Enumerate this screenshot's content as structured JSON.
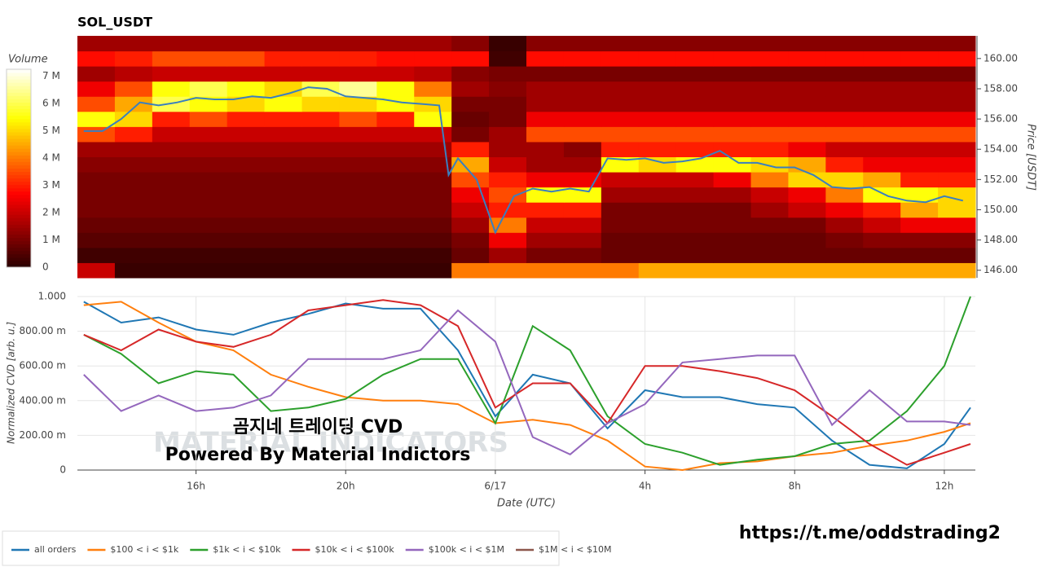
{
  "chart_data": [
    {
      "type": "heatmap",
      "title": "SOL_USDT",
      "x": [
        13.33,
        14.33,
        15.33,
        16.33,
        17.33,
        18.33,
        19.33,
        20.33,
        21.33,
        22.33,
        23.33,
        24.33,
        25.33,
        26.33,
        27.33,
        28.33,
        29.33,
        30.33,
        31.33,
        32.33,
        33.33,
        34.33,
        35.33,
        36.33
      ],
      "y": [
        146,
        147,
        148,
        149,
        150,
        151,
        152,
        153,
        154,
        155,
        156,
        157,
        158,
        159,
        160,
        161
      ],
      "z": [
        [
          2000000.0,
          200000.0,
          200000.0,
          200000.0,
          200000.0,
          200000.0,
          200000.0,
          200000.0,
          200000.0,
          200000.0,
          4000000.0,
          4000000.0,
          4000000.0,
          4000000.0,
          4000000.0,
          4500000.0,
          4500000.0,
          4500000.0,
          4500000.0,
          4500000.0,
          4500000.0,
          4500000.0,
          4500000.0,
          4500000.0
        ],
        [
          300000.0,
          300000.0,
          300000.0,
          300000.0,
          300000.0,
          300000.0,
          300000.0,
          300000.0,
          300000.0,
          300000.0,
          800000.0,
          1500000.0,
          1000000.0,
          1000000.0,
          800000.0,
          800000.0,
          800000.0,
          800000.0,
          800000.0,
          800000.0,
          800000.0,
          800000.0,
          800000.0,
          800000.0
        ],
        [
          600000.0,
          600000.0,
          600000.0,
          600000.0,
          600000.0,
          600000.0,
          600000.0,
          600000.0,
          600000.0,
          600000.0,
          1000000.0,
          2500000.0,
          1500000.0,
          1500000.0,
          800000.0,
          800000.0,
          800000.0,
          800000.0,
          800000.0,
          800000.0,
          1000000.0,
          1200000.0,
          1200000.0,
          1200000.0
        ],
        [
          800000.0,
          800000.0,
          800000.0,
          800000.0,
          800000.0,
          800000.0,
          800000.0,
          800000.0,
          800000.0,
          800000.0,
          1500000.0,
          4000000.0,
          2000000.0,
          2000000.0,
          1000000.0,
          1000000.0,
          1000000.0,
          1000000.0,
          1000000.0,
          1000000.0,
          1500000.0,
          2000000.0,
          2500000.0,
          2500000.0
        ],
        [
          1000000.0,
          1000000.0,
          1000000.0,
          1000000.0,
          1000000.0,
          1000000.0,
          1000000.0,
          1000000.0,
          1000000.0,
          1000000.0,
          2000000.0,
          3000000.0,
          3000000.0,
          3000000.0,
          1000000.0,
          1000000.0,
          1000000.0,
          1000000.0,
          1500000.0,
          2000000.0,
          2500000.0,
          3000000.0,
          4500000.0,
          5000000.0
        ],
        [
          1000000.0,
          1000000.0,
          1000000.0,
          1000000.0,
          1000000.0,
          1000000.0,
          1000000.0,
          1000000.0,
          1000000.0,
          1000000.0,
          2500000.0,
          3500000.0,
          5500000.0,
          5500000.0,
          1500000.0,
          1500000.0,
          1500000.0,
          1500000.0,
          2000000.0,
          2500000.0,
          4000000.0,
          5500000.0,
          5500000.0,
          5000000.0
        ],
        [
          1000000.0,
          1000000.0,
          1000000.0,
          1000000.0,
          1000000.0,
          1000000.0,
          1000000.0,
          1000000.0,
          1000000.0,
          1000000.0,
          3500000.0,
          3000000.0,
          2500000.0,
          2500000.0,
          2000000.0,
          2000000.0,
          2000000.0,
          2500000.0,
          4000000.0,
          5000000.0,
          5000000.0,
          4500000.0,
          3000000.0,
          3000000.0
        ],
        [
          1200000.0,
          1200000.0,
          1200000.0,
          1200000.0,
          1200000.0,
          1200000.0,
          1200000.0,
          1200000.0,
          1200000.0,
          1200000.0,
          4500000.0,
          2000000.0,
          1500000.0,
          1500000.0,
          5500000.0,
          5000000.0,
          5500000.0,
          5500000.0,
          5000000.0,
          4500000.0,
          3000000.0,
          2500000.0,
          2500000.0,
          2500000.0
        ],
        [
          1500000.0,
          1500000.0,
          1500000.0,
          1500000.0,
          1500000.0,
          1500000.0,
          1500000.0,
          1500000.0,
          1500000.0,
          1500000.0,
          3000000.0,
          1500000.0,
          1500000.0,
          1200000.0,
          3000000.0,
          3000000.0,
          3000000.0,
          3000000.0,
          3000000.0,
          2500000.0,
          2000000.0,
          2000000.0,
          2000000.0,
          2000000.0
        ],
        [
          3500000.0,
          3000000.0,
          2000000.0,
          2000000.0,
          2000000.0,
          2000000.0,
          2000000.0,
          2000000.0,
          2000000.0,
          2000000.0,
          1000000.0,
          1500000.0,
          3500000.0,
          3500000.0,
          3500000.0,
          3500000.0,
          3500000.0,
          3500000.0,
          3500000.0,
          3500000.0,
          3500000.0,
          3500000.0,
          3500000.0,
          3500000.0
        ],
        [
          5500000.0,
          5000000.0,
          3000000.0,
          3500000.0,
          3000000.0,
          3000000.0,
          3000000.0,
          3500000.0,
          3000000.0,
          5500000.0,
          800000.0,
          1000000.0,
          2500000.0,
          2500000.0,
          2500000.0,
          2500000.0,
          2500000.0,
          2500000.0,
          2500000.0,
          2500000.0,
          2500000.0,
          2500000.0,
          2500000.0,
          2500000.0
        ],
        [
          3500000.0,
          4500000.0,
          6000000.0,
          5500000.0,
          5000000.0,
          5500000.0,
          5000000.0,
          5000000.0,
          5500000.0,
          5000000.0,
          1000000.0,
          1000000.0,
          1500000.0,
          1500000.0,
          1500000.0,
          1500000.0,
          1500000.0,
          1500000.0,
          1500000.0,
          1500000.0,
          1500000.0,
          1500000.0,
          1500000.0,
          1500000.0
        ],
        [
          2500000.0,
          3500000.0,
          5500000.0,
          6000000.0,
          5500000.0,
          5000000.0,
          6000000.0,
          6500000.0,
          5500000.0,
          4000000.0,
          1500000.0,
          1200000.0,
          1500000.0,
          1500000.0,
          1500000.0,
          1500000.0,
          1500000.0,
          1500000.0,
          1500000.0,
          1500000.0,
          1500000.0,
          1500000.0,
          1500000.0,
          1500000.0
        ],
        [
          1500000.0,
          1800000.0,
          2000000.0,
          2000000.0,
          2000000.0,
          2000000.0,
          2000000.0,
          2000000.0,
          2000000.0,
          1800000.0,
          1200000.0,
          1000000.0,
          1000000.0,
          1000000.0,
          1000000.0,
          1000000.0,
          1000000.0,
          1000000.0,
          1000000.0,
          1000000.0,
          1000000.0,
          1000000.0,
          1000000.0,
          1000000.0
        ],
        [
          2800000.0,
          3000000.0,
          3500000.0,
          3500000.0,
          3500000.0,
          3000000.0,
          3000000.0,
          3000000.0,
          2800000.0,
          2800000.0,
          2800000.0,
          300000.0,
          2800000.0,
          2800000.0,
          2800000.0,
          2800000.0,
          2800000.0,
          2800000.0,
          2800000.0,
          2800000.0,
          2800000.0,
          2800000.0,
          2800000.0,
          2800000.0
        ],
        [
          1500000.0,
          1500000.0,
          1500000.0,
          1500000.0,
          1500000.0,
          1500000.0,
          1500000.0,
          1500000.0,
          1500000.0,
          1500000.0,
          1200000.0,
          200000.0,
          1200000.0,
          1200000.0,
          1200000.0,
          1200000.0,
          1200000.0,
          1200000.0,
          1200000.0,
          1200000.0,
          1200000.0,
          1200000.0,
          1200000.0,
          1200000.0
        ]
      ],
      "zlim": [
        0,
        7250000
      ],
      "colorbar_label": "Volume",
      "zticks": [
        0,
        {
          "value": 1000000,
          "label": "1 M"
        },
        {
          "value": 2000000,
          "label": "2 M"
        },
        {
          "value": 3000000,
          "label": "3 M"
        },
        {
          "value": 4000000,
          "label": "4 M"
        },
        {
          "value": 5000000,
          "label": "5 M"
        },
        {
          "value": 6000000,
          "label": "6 M"
        },
        {
          "value": 7000000,
          "label": "7 M"
        }
      ],
      "colormap": "hot",
      "xlim": [
        12.83,
        36.83
      ],
      "ylim": [
        145.5,
        161.5
      ],
      "yticks": [
        {
          "value": 146,
          "label": "146.00"
        },
        {
          "value": 148,
          "label": "148.00"
        },
        {
          "value": 150,
          "label": "150.00"
        },
        {
          "value": 152,
          "label": "152.00"
        },
        {
          "value": 154,
          "label": "154.00"
        },
        {
          "value": 156,
          "label": "156.00"
        },
        {
          "value": 158,
          "label": "158.00"
        },
        {
          "value": 160,
          "label": "160.00"
        }
      ],
      "ylabel": "Price [USDT]",
      "line": {
        "color": "#3a7fbf",
        "x": [
          13,
          13.5,
          14,
          14.5,
          15,
          15.5,
          16,
          16.5,
          17,
          17.5,
          18,
          18.5,
          19,
          19.5,
          20,
          20.5,
          21,
          21.5,
          22,
          22.5,
          22.75,
          23,
          23.5,
          24,
          24.5,
          25,
          25.5,
          26,
          26.5,
          27,
          27.5,
          28,
          28.5,
          29,
          29.5,
          30,
          30.5,
          31,
          31.5,
          32,
          32.5,
          33,
          33.5,
          34,
          34.5,
          35,
          35.5,
          36,
          36.5
        ],
        "values": [
          155.2,
          155.2,
          156,
          157.1,
          156.9,
          157.1,
          157.4,
          157.3,
          157.3,
          157.5,
          157.4,
          157.7,
          158.1,
          158,
          157.5,
          157.4,
          157.3,
          157.1,
          157,
          156.9,
          152.3,
          153.4,
          152,
          148.5,
          150.9,
          151.4,
          151.2,
          151.4,
          151.2,
          153.4,
          153.3,
          153.4,
          153.1,
          153.2,
          153.4,
          153.9,
          153.1,
          153.1,
          152.8,
          152.8,
          152.3,
          151.5,
          151.4,
          151.5,
          150.9,
          150.6,
          150.5,
          150.9,
          150.6
        ]
      }
    },
    {
      "type": "line",
      "x": [
        13,
        14,
        15,
        16,
        17,
        18,
        19,
        20,
        21,
        22,
        23,
        24,
        25,
        26,
        27,
        28,
        29,
        30,
        31,
        32,
        33,
        34,
        35,
        36,
        36.7
      ],
      "series": [
        {
          "name": "all orders",
          "color": "#1f77b4",
          "values": [
            0.97,
            0.85,
            0.88,
            0.81,
            0.78,
            0.85,
            0.9,
            0.96,
            0.93,
            0.93,
            0.69,
            0.31,
            0.55,
            0.5,
            0.24,
            0.46,
            0.42,
            0.42,
            0.38,
            0.36,
            0.17,
            0.03,
            0.01,
            0.15,
            0.36
          ]
        },
        {
          "name": "$100 < i < $1k",
          "color": "#ff7f0e",
          "values": [
            0.95,
            0.97,
            0.85,
            0.74,
            0.69,
            0.55,
            0.48,
            0.42,
            0.4,
            0.4,
            0.38,
            0.27,
            0.29,
            0.26,
            0.17,
            0.02,
            0,
            0.04,
            0.05,
            0.08,
            0.1,
            0.14,
            0.17,
            0.22,
            0.27
          ]
        },
        {
          "name": "$1k < i < $10k",
          "color": "#2ca02c",
          "values": [
            0.78,
            0.67,
            0.5,
            0.57,
            0.55,
            0.34,
            0.36,
            0.41,
            0.55,
            0.64,
            0.64,
            0.27,
            0.83,
            0.69,
            0.31,
            0.15,
            0.1,
            0.03,
            0.06,
            0.08,
            0.15,
            0.17,
            0.34,
            0.6,
            1
          ]
        },
        {
          "name": "$10k < i < $100k",
          "color": "#d62728",
          "values": [
            0.78,
            0.69,
            0.81,
            0.74,
            0.71,
            0.78,
            0.92,
            0.95,
            0.98,
            0.95,
            0.83,
            0.36,
            0.5,
            0.5,
            0.27,
            0.6,
            0.6,
            0.57,
            0.53,
            0.46,
            0.31,
            0.15,
            0.03,
            0.1,
            0.15
          ]
        },
        {
          "name": "$100k < i < $1M",
          "color": "#9467bd",
          "values": [
            0.55,
            0.34,
            0.43,
            0.34,
            0.36,
            0.43,
            0.64,
            0.64,
            0.64,
            0.69,
            0.92,
            0.74,
            0.19,
            0.09,
            0.27,
            0.38,
            0.62,
            0.64,
            0.66,
            0.66,
            0.26,
            0.46,
            0.28,
            0.28,
            0.26
          ]
        },
        {
          "name": "$1M < i < $10M",
          "color": "#8c564b",
          "values": [
            null,
            null,
            null,
            null,
            null,
            null,
            null,
            null,
            null,
            null,
            null,
            null,
            null,
            null,
            null,
            null,
            null,
            null,
            null,
            null,
            null,
            null,
            null,
            null,
            null
          ]
        }
      ],
      "xlim": [
        12.83,
        36.83
      ],
      "xticks": [
        {
          "value": 16,
          "label": "16h"
        },
        {
          "value": 20,
          "label": "20h"
        },
        {
          "value": 24,
          "label": "6/17"
        },
        {
          "value": 28,
          "label": "4h"
        },
        {
          "value": 32,
          "label": "8h"
        },
        {
          "value": 36,
          "label": "12h"
        }
      ],
      "ylim": [
        0,
        1
      ],
      "yticks": [
        0,
        {
          "value": 0.2,
          "label": "200.00 m"
        },
        {
          "value": 0.4,
          "label": "400.00 m"
        },
        {
          "value": 0.6,
          "label": "600.00 m"
        },
        {
          "value": 0.8,
          "label": "800.00 m"
        },
        {
          "value": 1,
          "label": "1.000"
        }
      ],
      "xlabel": "Date (UTC)",
      "ylabel": "Normalized CVD [arb. u.]",
      "grid": true
    }
  ],
  "watermark": "MATERIAL INDICATORS",
  "overlay_text": [
    "곰지네 트레이딩 CVD",
    "Powered By Material Indictors"
  ],
  "footer_url": "https://t.me/oddstrading2"
}
